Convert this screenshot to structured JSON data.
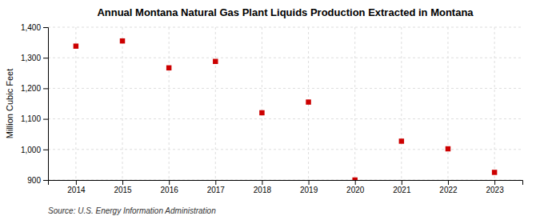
{
  "chart_data": {
    "type": "scatter",
    "title": "Annual Montana Natural Gas Plant Liquids Production Extracted in Montana",
    "ylabel": "Million Cubic Feet",
    "annotations": [
      "Source: U.S. Energy Information Administration"
    ],
    "x": [
      2014,
      2015,
      2016,
      2017,
      2018,
      2019,
      2020,
      2021,
      2022,
      2023
    ],
    "values": [
      1338,
      1355,
      1267,
      1288,
      1120,
      1155,
      900,
      1027,
      1002,
      925
    ],
    "color": "#cc0000",
    "marker": "square",
    "xlim": [
      2013.4,
      2023.6
    ],
    "xticks": [
      2014,
      2015,
      2016,
      2017,
      2018,
      2019,
      2020,
      2021,
      2022,
      2023
    ],
    "ylim": [
      900,
      1400
    ],
    "yticks": [
      900,
      {
        "value": 1000,
        "label": "1,000"
      },
      {
        "value": 1100,
        "label": "1,100"
      },
      {
        "value": 1200,
        "label": "1,200"
      },
      {
        "value": 1300,
        "label": "1,300"
      },
      {
        "value": 1400,
        "label": "1,400"
      }
    ],
    "grid": true
  }
}
